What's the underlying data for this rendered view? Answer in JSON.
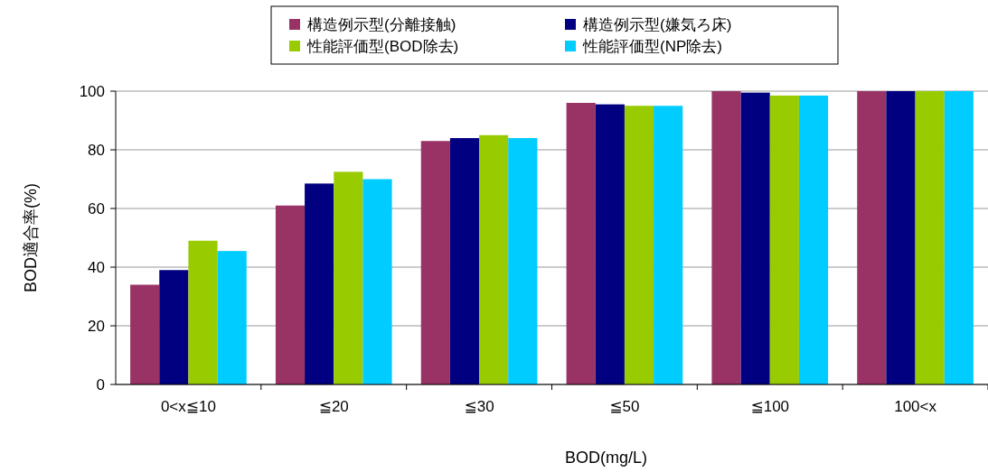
{
  "chart_data": {
    "type": "bar",
    "xlabel": "BOD(mg/L)",
    "ylabel": "BOD適合率(%)",
    "categories": [
      "0<x≦10",
      "≦20",
      "≦30",
      "≦50",
      "≦100",
      "100<x"
    ],
    "series": [
      {
        "name": "構造例示型(分離接触)",
        "color": "#993366",
        "values": [
          34,
          61,
          83,
          96,
          100,
          100
        ]
      },
      {
        "name": "構造例示型(嫌気ろ床)",
        "color": "#000080",
        "values": [
          39,
          68.5,
          84,
          95.5,
          99.5,
          100
        ]
      },
      {
        "name": "性能評価型(BOD除去)",
        "color": "#99cc00",
        "values": [
          49,
          72.5,
          85,
          95,
          98.5,
          100
        ]
      },
      {
        "name": "性能評価型(NP除去)",
        "color": "#00ccff",
        "values": [
          45.5,
          70,
          84,
          95,
          98.5,
          100
        ]
      }
    ],
    "ylim": [
      0,
      100
    ],
    "yticks": [
      0,
      20,
      40,
      60,
      80,
      100
    ],
    "grid": "y",
    "legend": "top"
  }
}
